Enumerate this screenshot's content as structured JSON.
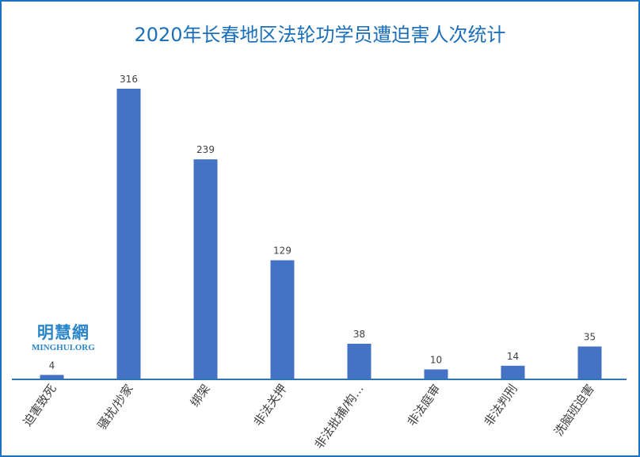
{
  "chart_data": {
    "type": "bar",
    "title": "2020年长春地区法轮功学员遭迫害人次统计",
    "categories": [
      "迫害致死",
      "骚扰/抄家",
      "绑架",
      "非法关押",
      "非法批捕/构…",
      "非法庭审",
      "非法判刑",
      "洗脑班迫害"
    ],
    "values": [
      4,
      316,
      239,
      129,
      38,
      10,
      14,
      35
    ],
    "ylim": [
      0,
      330
    ],
    "grid": false,
    "legend": "none",
    "bar_color": "#4472c4",
    "axis_color": "#2e75b6",
    "label_color": "#404040"
  },
  "watermark": {
    "cn": "明慧網",
    "en": "MINGHUI.ORG"
  }
}
